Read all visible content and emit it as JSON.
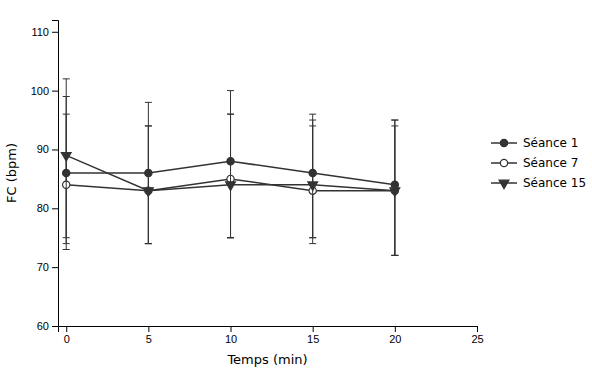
{
  "chart_data": {
    "type": "line",
    "x": [
      0,
      5,
      10,
      15,
      20
    ],
    "series": [
      {
        "name": "Séance 1",
        "color": "#333333",
        "marker": "circle",
        "values": [
          86,
          86,
          88,
          86,
          84
        ],
        "error_upper": [
          16,
          12,
          12,
          10,
          11
        ],
        "error_lower": [
          13,
          12,
          13,
          11,
          12
        ]
      },
      {
        "name": "Séance 7",
        "color": "#333333",
        "marker": "circle-open",
        "values": [
          84,
          83,
          85,
          83,
          83
        ],
        "error_upper": [
          12,
          11,
          11,
          11,
          11
        ],
        "error_lower": [
          10,
          9,
          10,
          9,
          11
        ]
      },
      {
        "name": "Séance 15",
        "color": "#333333",
        "marker": "triangle-down",
        "values": [
          89,
          83,
          84,
          84,
          83
        ],
        "error_upper": [
          10,
          11,
          12,
          11,
          12
        ],
        "error_lower": [
          14,
          9,
          9,
          9,
          11
        ]
      }
    ],
    "xlabel": "Temps (min)",
    "ylabel": "FC (bpm)",
    "xlim": [
      -0.5,
      25
    ],
    "ylim": [
      60,
      112
    ],
    "xticks": [
      0,
      5,
      10,
      15,
      20,
      25
    ],
    "yticks": [
      60,
      70,
      80,
      90,
      100,
      110
    ],
    "grid": false,
    "legend": "right"
  }
}
